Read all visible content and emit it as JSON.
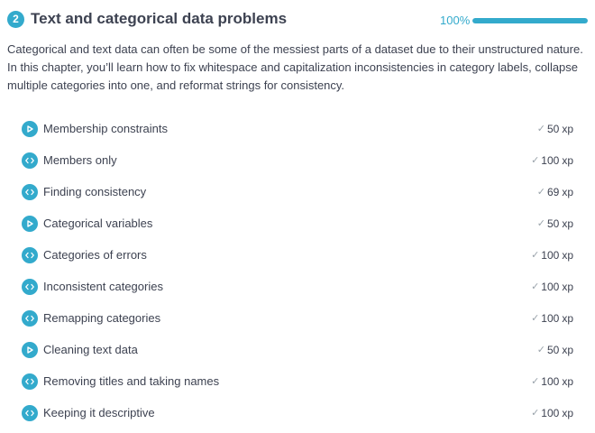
{
  "chapter": {
    "number": "2",
    "title": "Text and categorical data problems",
    "progress_label": "100%",
    "progress_fraction": 1.0,
    "description": "Categorical and text data can often be some of the messiest parts of a dataset due to their unstructured nature. In this chapter, you’ll learn how to fix whitespace and capitalization inconsistencies in category labels, collapse multiple categories into one, and reformat strings for consistency."
  },
  "colors": {
    "accent": "#33aacc",
    "text": "#3d4251",
    "check": "#9aa3ab",
    "track": "#dde6ea"
  },
  "exercises": [
    {
      "title": "Membership constraints",
      "icon": "play-icon",
      "xp": "50",
      "xp_unit": "xp",
      "completed": true
    },
    {
      "title": "Members only",
      "icon": "code-icon",
      "xp": "100",
      "xp_unit": "xp",
      "completed": true
    },
    {
      "title": "Finding consistency",
      "icon": "code-icon",
      "xp": "69",
      "xp_unit": "xp",
      "completed": true
    },
    {
      "title": "Categorical variables",
      "icon": "play-icon",
      "xp": "50",
      "xp_unit": "xp",
      "completed": true
    },
    {
      "title": "Categories of errors",
      "icon": "code-icon",
      "xp": "100",
      "xp_unit": "xp",
      "completed": true
    },
    {
      "title": "Inconsistent categories",
      "icon": "code-icon",
      "xp": "100",
      "xp_unit": "xp",
      "completed": true
    },
    {
      "title": "Remapping categories",
      "icon": "code-icon",
      "xp": "100",
      "xp_unit": "xp",
      "completed": true
    },
    {
      "title": "Cleaning text data",
      "icon": "play-icon",
      "xp": "50",
      "xp_unit": "xp",
      "completed": true
    },
    {
      "title": "Removing titles and taking names",
      "icon": "code-icon",
      "xp": "100",
      "xp_unit": "xp",
      "completed": true
    },
    {
      "title": "Keeping it descriptive",
      "icon": "code-icon",
      "xp": "100",
      "xp_unit": "xp",
      "completed": true
    }
  ]
}
